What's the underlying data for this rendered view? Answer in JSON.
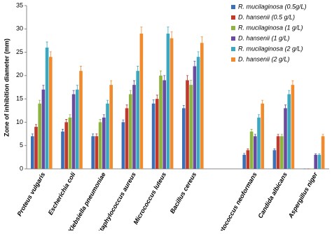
{
  "chart_data": {
    "type": "bar",
    "ylabel": "Zone of inhibition diameter (mm)",
    "categories": [
      "Proteus vulgaris",
      "Escherichia coli",
      "Klebsiella pneumoniae",
      "Staphylococcus aureus",
      "Micrococcus luteus",
      "Bacillus cereus",
      null,
      "Cryptococcus neoformans",
      "Candida albicans",
      "Aspergillus niger"
    ],
    "series": [
      {
        "name": "R. mucilaginosa (0.5g/L)",
        "color": "#3b6fb6",
        "values": [
          7,
          8,
          7,
          10,
          14,
          13,
          null,
          3,
          4,
          0
        ],
        "errors": [
          0.5,
          0.5,
          0.5,
          0.5,
          0.8,
          0.6,
          null,
          0.3,
          0.3,
          0
        ]
      },
      {
        "name": "D. hansenii (0.5 g/L)",
        "color": "#c0392b",
        "values": [
          9,
          10,
          7,
          13,
          15,
          19,
          null,
          4,
          7,
          0
        ],
        "errors": [
          0.5,
          0.6,
          0.5,
          0.7,
          0.8,
          1,
          null,
          0.3,
          0.4,
          0
        ]
      },
      {
        "name": "R. mucilaginosa (1 g/L)",
        "color": "#8db43e",
        "values": [
          14,
          11,
          10,
          16,
          20,
          18,
          null,
          8,
          7,
          0
        ],
        "errors": [
          0.7,
          0.6,
          0.6,
          0.8,
          1,
          1,
          null,
          0.5,
          0.4,
          0
        ]
      },
      {
        "name": "D. hansenii (1 g/L)",
        "color": "#6a4a9c",
        "values": [
          17,
          16,
          11,
          18,
          19,
          22,
          null,
          7,
          13,
          3
        ],
        "errors": [
          0.9,
          0.8,
          0.6,
          0.9,
          1,
          1.1,
          null,
          0.4,
          0.7,
          0.2
        ]
      },
      {
        "name": "R. mucilaginosa (2 g/L)",
        "color": "#3aa8c1",
        "values": [
          26,
          17,
          14,
          21,
          29,
          24,
          null,
          11,
          16,
          3
        ],
        "errors": [
          1.2,
          0.9,
          0.7,
          1,
          1.4,
          1.1,
          null,
          0.6,
          0.8,
          0.2
        ]
      },
      {
        "name": "D. hansenii (2 g/L)",
        "color": "#f08a2c",
        "values": [
          24,
          21,
          18,
          29,
          28,
          27,
          null,
          14,
          18,
          7
        ],
        "errors": [
          1.1,
          1,
          0.9,
          1.4,
          1.4,
          1.3,
          null,
          0.7,
          0.9,
          0.4
        ]
      }
    ],
    "ylim": [
      0,
      35
    ],
    "yticks": [
      0,
      5,
      10,
      15,
      20,
      25,
      30,
      35
    ],
    "legend": "upper right"
  }
}
